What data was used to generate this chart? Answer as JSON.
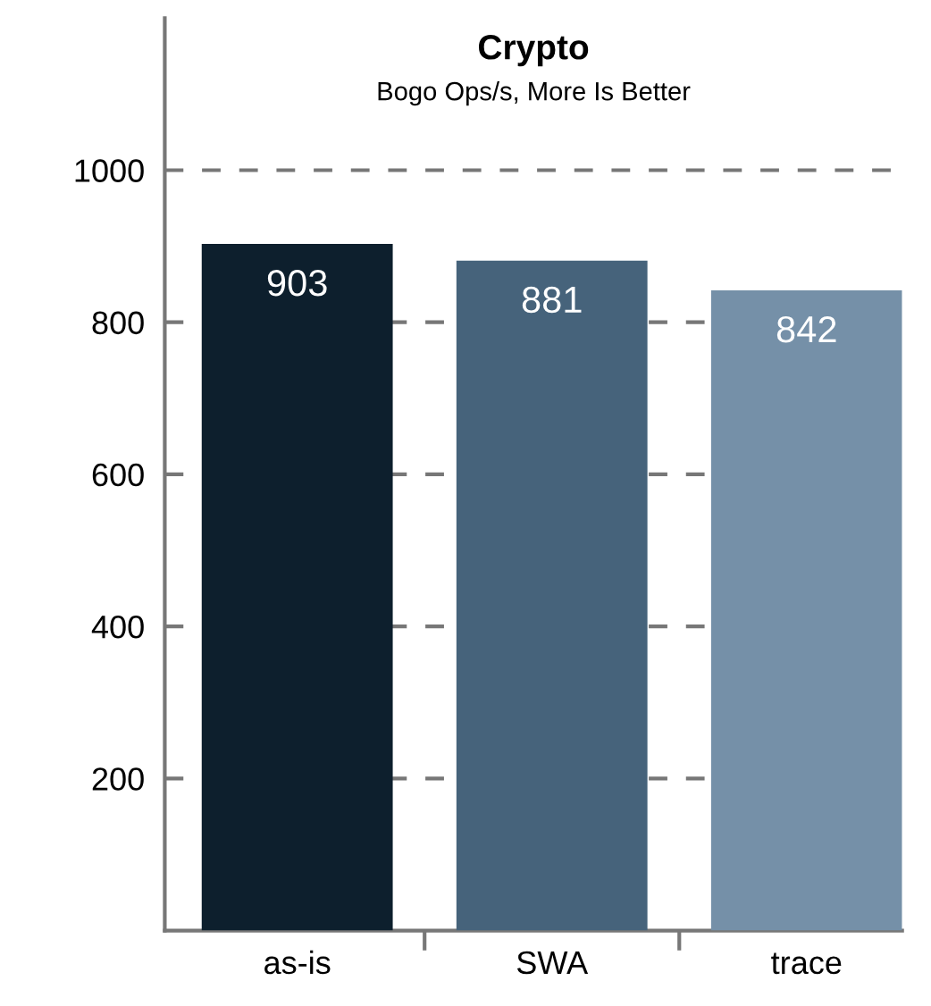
{
  "chart_data": {
    "type": "bar",
    "title": "Crypto",
    "subtitle": "Bogo Ops/s, More Is Better",
    "categories": [
      "as-is",
      "SWA",
      "trace"
    ],
    "values": [
      903,
      881,
      842
    ],
    "colors": [
      "#0d1f2d",
      "#46637b",
      "#7590a8"
    ],
    "ylim": [
      0,
      1200
    ],
    "yticks": [
      200,
      400,
      600,
      800,
      1000
    ],
    "grid": "y",
    "data_labels": true,
    "legend": false
  }
}
